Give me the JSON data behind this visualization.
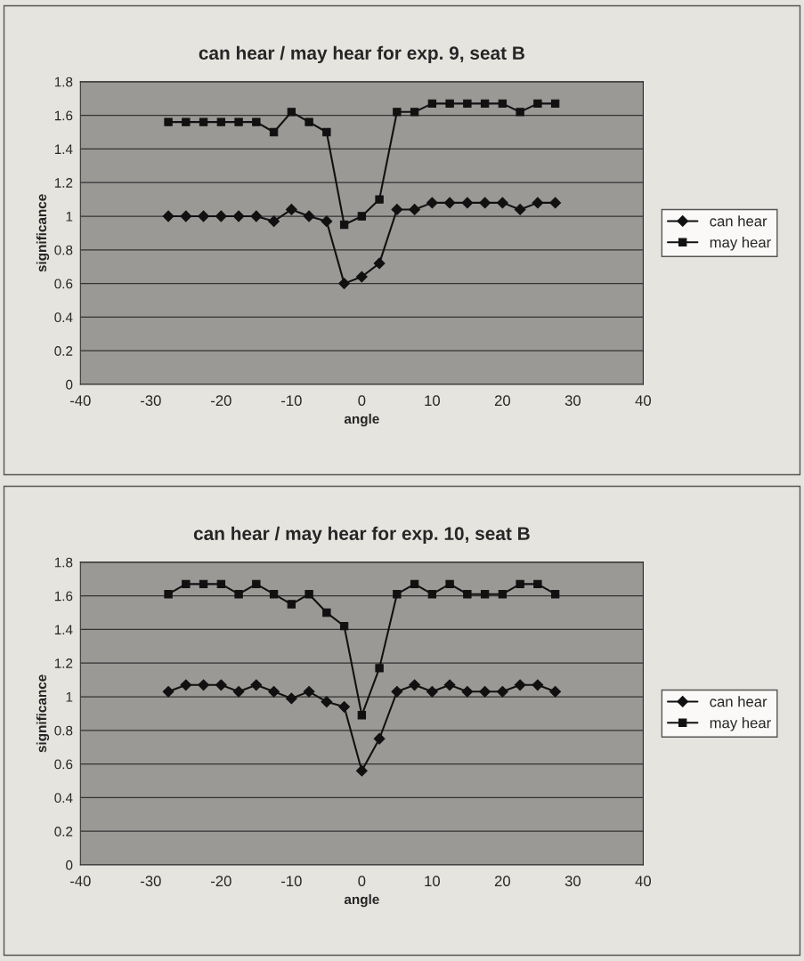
{
  "chart_data": [
    {
      "type": "line",
      "title": "can hear / may hear for exp. 9, seat B",
      "xlabel": "angle",
      "ylabel": "significance",
      "x": [
        -27.5,
        -25,
        -22.5,
        -20,
        -17.5,
        -15,
        -12.5,
        -10,
        -7.5,
        -5,
        -2.5,
        0,
        2.5,
        5,
        7.5,
        10,
        12.5,
        15,
        17.5,
        20,
        22.5,
        25,
        27.5
      ],
      "series": [
        {
          "name": "can hear",
          "color": "#111111",
          "marker": "diamond",
          "values": [
            1.0,
            1.0,
            1.0,
            1.0,
            1.0,
            1.0,
            0.97,
            1.04,
            1.0,
            0.97,
            0.6,
            0.64,
            0.72,
            1.04,
            1.04,
            1.08,
            1.08,
            1.08,
            1.08,
            1.08,
            1.04,
            1.08,
            1.08
          ]
        },
        {
          "name": "may hear",
          "color": "#111111",
          "marker": "square",
          "values": [
            1.56,
            1.56,
            1.56,
            1.56,
            1.56,
            1.56,
            1.5,
            1.62,
            1.56,
            1.5,
            0.95,
            1.0,
            1.1,
            1.62,
            1.62,
            1.67,
            1.67,
            1.67,
            1.67,
            1.67,
            1.62,
            1.67,
            1.67
          ]
        }
      ],
      "xlim": [
        -40,
        40
      ],
      "xticks": [
        -40,
        -30,
        -20,
        -10,
        0,
        10,
        20,
        30,
        40
      ],
      "ylim": [
        0,
        1.8
      ],
      "yticks": [
        0,
        0.2,
        0.4,
        0.6,
        0.8,
        1,
        1.2,
        1.4,
        1.6,
        1.8
      ],
      "grid": "y",
      "legend": "right"
    },
    {
      "type": "line",
      "title": "can hear / may hear for exp. 10, seat B",
      "xlabel": "angle",
      "ylabel": "significance",
      "x": [
        -27.5,
        -25,
        -22.5,
        -20,
        -17.5,
        -15,
        -12.5,
        -10,
        -7.5,
        -5,
        -2.5,
        0,
        2.5,
        5,
        7.5,
        10,
        12.5,
        15,
        17.5,
        20,
        22.5,
        25,
        27.5
      ],
      "series": [
        {
          "name": "can hear",
          "color": "#111111",
          "marker": "diamond",
          "values": [
            1.03,
            1.07,
            1.07,
            1.07,
            1.03,
            1.07,
            1.03,
            0.99,
            1.03,
            0.97,
            0.94,
            0.56,
            0.75,
            1.03,
            1.07,
            1.03,
            1.07,
            1.03,
            1.03,
            1.03,
            1.07,
            1.07,
            1.03
          ]
        },
        {
          "name": "may hear",
          "color": "#111111",
          "marker": "square",
          "values": [
            1.61,
            1.67,
            1.67,
            1.67,
            1.61,
            1.67,
            1.61,
            1.55,
            1.61,
            1.5,
            1.42,
            0.89,
            1.17,
            1.61,
            1.67,
            1.61,
            1.67,
            1.61,
            1.61,
            1.61,
            1.67,
            1.67,
            1.61
          ]
        }
      ],
      "xlim": [
        -40,
        40
      ],
      "xticks": [
        -40,
        -30,
        -20,
        -10,
        0,
        10,
        20,
        30,
        40
      ],
      "ylim": [
        0,
        1.8
      ],
      "yticks": [
        0,
        0.2,
        0.4,
        0.6,
        0.8,
        1,
        1.2,
        1.4,
        1.6,
        1.8
      ],
      "grid": "y",
      "legend": "right"
    }
  ]
}
